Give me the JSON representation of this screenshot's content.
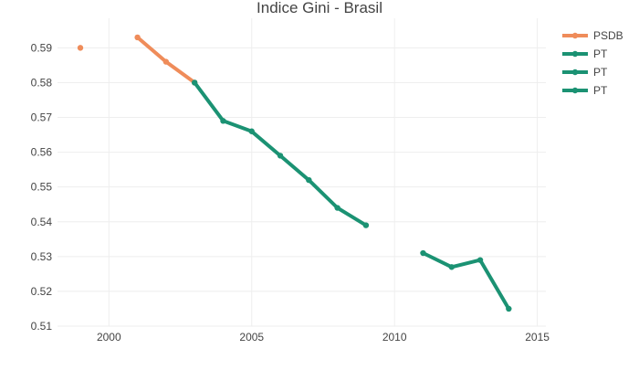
{
  "chart_data": {
    "type": "line",
    "title": "Indice Gini - Brasil",
    "xlabel": "",
    "ylabel": "",
    "xlim": [
      1998.2,
      2015.3
    ],
    "ylim": [
      0.51,
      0.5985
    ],
    "grid": true,
    "legend_position": "top-right",
    "x_ticks": [
      2000,
      2005,
      2010,
      2015
    ],
    "y_ticks": [
      0.51,
      0.52,
      0.53,
      0.54,
      0.55,
      0.56,
      0.57,
      0.58,
      0.59
    ],
    "series": [
      {
        "name": "PSDB",
        "color": "#ef8c5a",
        "x": [
          1999,
          2001,
          2002,
          2003
        ],
        "y": [
          0.59,
          0.593,
          0.586,
          0.58
        ],
        "segments": [
          [
            0,
            0
          ],
          [
            1,
            3
          ]
        ]
      },
      {
        "name": "PT",
        "color": "#1b9273",
        "x": [
          2003,
          2004,
          2005,
          2006,
          2007,
          2008,
          2009
        ],
        "y": [
          0.58,
          0.569,
          0.566,
          0.559,
          0.552,
          0.544,
          0.539
        ],
        "segments": [
          [
            0,
            6
          ]
        ]
      },
      {
        "name": "PT",
        "color": "#1b9273",
        "x": [
          2011,
          2012,
          2013,
          2014
        ],
        "y": [
          0.531,
          0.527,
          0.529,
          0.515
        ],
        "segments": [
          [
            0,
            3
          ]
        ]
      },
      {
        "name": "PT",
        "color": "#1b9273",
        "x": [],
        "y": [],
        "segments": []
      }
    ]
  }
}
